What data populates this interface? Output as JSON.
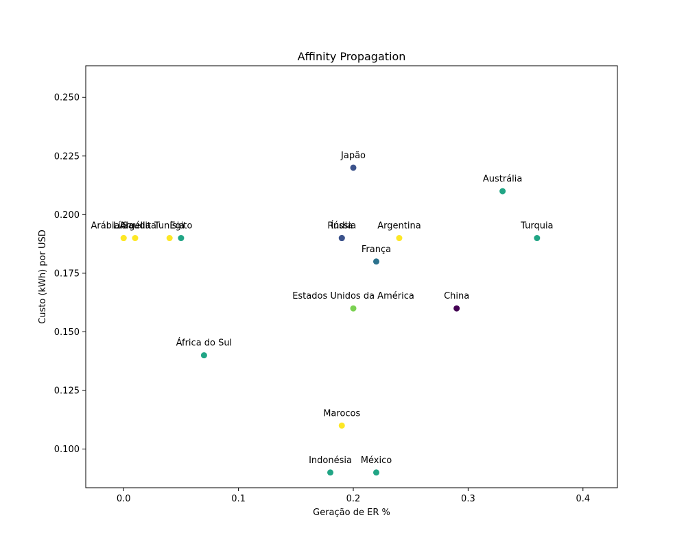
{
  "chart_data": {
    "type": "scatter",
    "title": "Affinity Propagation",
    "xlabel": "Geração de ER %",
    "ylabel": "Custo (kWh) por USD",
    "xlim": [
      -0.033,
      0.43
    ],
    "ylim": [
      0.0835,
      0.2635
    ],
    "xticks": [
      0.0,
      0.1,
      0.2,
      0.3,
      0.4
    ],
    "xtick_labels": [
      "0.0",
      "0.1",
      "0.2",
      "0.3",
      "0.4"
    ],
    "yticks": [
      0.1,
      0.125,
      0.15,
      0.175,
      0.2,
      0.225,
      0.25
    ],
    "ytick_labels": [
      "0.100",
      "0.125",
      "0.150",
      "0.175",
      "0.200",
      "0.225",
      "0.250"
    ],
    "grid": false,
    "colors": {
      "purple": "#440154",
      "indigo": "#3b528b",
      "blue": "#2c728e",
      "teal": "#21a585",
      "green": "#7ad151",
      "yellow": "#fde725"
    },
    "points": [
      {
        "label": "Arábia Saudita",
        "x": 0.0,
        "y": 0.19,
        "color": "yellow"
      },
      {
        "label": "Líbia",
        "x": 0.0,
        "y": 0.19,
        "color": "yellow"
      },
      {
        "label": "Argélia",
        "x": 0.01,
        "y": 0.19,
        "color": "yellow"
      },
      {
        "label": "Tunísia",
        "x": 0.04,
        "y": 0.19,
        "color": "yellow"
      },
      {
        "label": "Egito",
        "x": 0.05,
        "y": 0.19,
        "color": "teal"
      },
      {
        "label": "África do Sul",
        "x": 0.07,
        "y": 0.14,
        "color": "teal"
      },
      {
        "label": "Japão",
        "x": 0.2,
        "y": 0.22,
        "color": "indigo"
      },
      {
        "label": "Rússia",
        "x": 0.19,
        "y": 0.19,
        "color": "indigo"
      },
      {
        "label": "Índia",
        "x": 0.19,
        "y": 0.19,
        "color": "indigo"
      },
      {
        "label": "Argentina",
        "x": 0.24,
        "y": 0.19,
        "color": "yellow"
      },
      {
        "label": "França",
        "x": 0.22,
        "y": 0.18,
        "color": "blue"
      },
      {
        "label": "Estados Unidos da América",
        "x": 0.2,
        "y": 0.16,
        "color": "green"
      },
      {
        "label": "China",
        "x": 0.29,
        "y": 0.16,
        "color": "purple"
      },
      {
        "label": "Austrália",
        "x": 0.33,
        "y": 0.21,
        "color": "teal"
      },
      {
        "label": "Turquia",
        "x": 0.36,
        "y": 0.19,
        "color": "teal"
      },
      {
        "label": "Marocos",
        "x": 0.19,
        "y": 0.11,
        "color": "yellow"
      },
      {
        "label": "Indonésia",
        "x": 0.18,
        "y": 0.09,
        "color": "teal"
      },
      {
        "label": "México",
        "x": 0.22,
        "y": 0.09,
        "color": "teal"
      }
    ]
  }
}
